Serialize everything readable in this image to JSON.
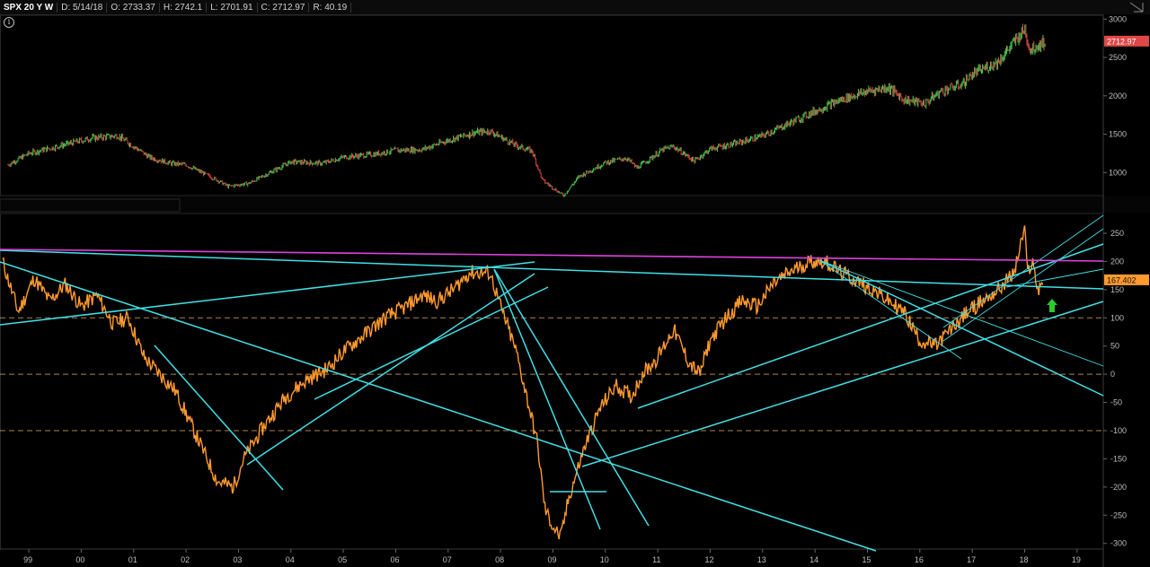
{
  "header": {
    "symbol": "SPX 20 Y W",
    "date": "D: 5/14/18",
    "open": "O: 2733.37",
    "high": "H: 2742.1",
    "low": "L: 2701.91",
    "close": "C: 2712.97",
    "range": "R: 40.19"
  },
  "info_label": "i",
  "chart_data": [
    {
      "type": "line",
      "title": "SPX 20 Y W",
      "price_label": "2712.97",
      "price_color": "#e04848",
      "candle_up_color": "#3fcf4f",
      "candle_down_color": "#e04848",
      "y_ticks": [
        "3000",
        "2500",
        "2000",
        "1500",
        "1000"
      ],
      "ylim": [
        700,
        3050
      ],
      "series": [
        {
          "x": [
            1998.6,
            1999.0,
            1999.6,
            2000.2,
            2000.7,
            2001.3,
            2001.7,
            2002.0,
            2002.6,
            2002.8,
            2003.2,
            2003.6,
            2004.0,
            2004.6,
            2005.0,
            2005.6,
            2006.0,
            2006.5,
            2007.0,
            2007.5,
            2007.8,
            2008.3,
            2008.6,
            2008.8,
            2009.2,
            2009.5,
            2010.0,
            2010.4,
            2010.6,
            2011.1,
            2011.3,
            2011.7,
            2012.0,
            2012.5,
            2013.0,
            2013.5,
            2014.0,
            2014.5,
            2015.0,
            2015.4,
            2015.7,
            2016.1,
            2016.4,
            2016.8,
            2017.0,
            2017.5,
            2018.0,
            2018.1,
            2018.2,
            2018.4
          ],
          "values": [
            1100,
            1250,
            1350,
            1450,
            1480,
            1200,
            1120,
            1100,
            900,
            820,
            860,
            1000,
            1140,
            1120,
            1200,
            1240,
            1290,
            1300,
            1420,
            1520,
            1540,
            1350,
            1280,
            900,
            700,
            950,
            1130,
            1190,
            1060,
            1300,
            1340,
            1150,
            1310,
            1380,
            1480,
            1640,
            1800,
            1950,
            2060,
            2110,
            1950,
            1900,
            2060,
            2150,
            2280,
            2450,
            2870,
            2600,
            2640,
            2713
          ]
        }
      ]
    },
    {
      "type": "line",
      "price_label": "167.402",
      "price_color": "#ff9a2e",
      "line_color": "#ff9a2e",
      "y_ticks": [
        "250",
        "200",
        "150",
        "100",
        "50",
        "0",
        "-50",
        "-100",
        "-150",
        "-200",
        "-250",
        "-300"
      ],
      "ylim": [
        -310,
        285
      ],
      "x_ticks": [
        "99",
        "00",
        "01",
        "02",
        "03",
        "04",
        "05",
        "06",
        "07",
        "08",
        "09",
        "10",
        "11",
        "12",
        "13",
        "14",
        "15",
        "16",
        "17",
        "18",
        "19"
      ],
      "xlim": [
        1998.45,
        2019.5
      ],
      "series": [
        {
          "x": [
            1998.5,
            1998.8,
            1999.1,
            1999.4,
            1999.7,
            2000.0,
            2000.3,
            2000.6,
            2000.9,
            2001.2,
            2001.5,
            2001.8,
            2002.0,
            2002.3,
            2002.6,
            2002.9,
            2003.1,
            2003.5,
            2003.9,
            2004.3,
            2004.7,
            2005.0,
            2005.4,
            2005.8,
            2006.2,
            2006.5,
            2006.8,
            2007.1,
            2007.4,
            2007.8,
            2008.0,
            2008.3,
            2008.5,
            2008.7,
            2008.85,
            2009.0,
            2009.15,
            2009.3,
            2009.6,
            2009.9,
            2010.2,
            2010.5,
            2010.7,
            2011.0,
            2011.3,
            2011.6,
            2011.8,
            2012.0,
            2012.3,
            2012.6,
            2012.9,
            2013.2,
            2013.5,
            2013.9,
            2014.2,
            2014.5,
            2014.8,
            2015.1,
            2015.4,
            2015.7,
            2016.0,
            2016.3,
            2016.6,
            2016.9,
            2017.2,
            2017.5,
            2017.8,
            2018.0,
            2018.05,
            2018.15,
            2018.25,
            2018.35
          ],
          "values": [
            200,
            110,
            170,
            130,
            160,
            120,
            140,
            90,
            100,
            30,
            0,
            -30,
            -70,
            -130,
            -190,
            -200,
            -150,
            -90,
            -40,
            -10,
            10,
            40,
            70,
            100,
            120,
            140,
            130,
            150,
            180,
            180,
            120,
            40,
            -40,
            -120,
            -240,
            -270,
            -290,
            -220,
            -130,
            -60,
            -20,
            -40,
            0,
            30,
            80,
            20,
            0,
            60,
            100,
            130,
            120,
            160,
            180,
            200,
            200,
            180,
            165,
            150,
            130,
            110,
            60,
            50,
            80,
            110,
            130,
            150,
            180,
            260,
            180,
            200,
            150,
            167.402
          ]
        }
      ],
      "reference_lines": [
        {
          "y": 100,
          "style": "dashed",
          "color": "#e9b06a"
        },
        {
          "y": 0,
          "style": "dashed",
          "color": "#e9b06a"
        },
        {
          "y": -100,
          "style": "dashed",
          "color": "#e9b06a"
        }
      ],
      "drawn_lines": {
        "magenta_color": "#e040e0",
        "cyan_color": "#40e0e6"
      },
      "annotation": {
        "marker": "up-arrow",
        "color": "#2ec82e"
      }
    }
  ]
}
